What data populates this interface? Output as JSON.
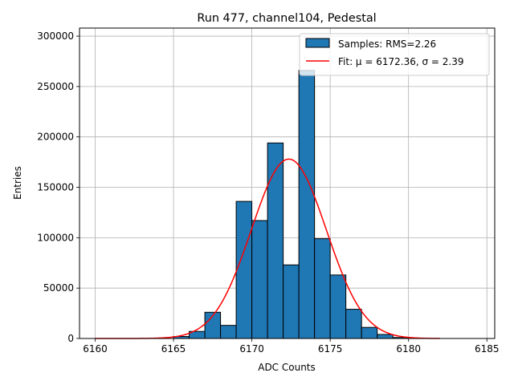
{
  "chart_data": {
    "type": "bar",
    "title": "Run 477, channel104, Pedestal",
    "xlabel": "ADC Counts",
    "ylabel": "Entries",
    "xlim": [
      6159,
      6185.5
    ],
    "ylim": [
      0,
      308000
    ],
    "xticks": [
      6160,
      6165,
      6170,
      6175,
      6180,
      6185
    ],
    "yticks": [
      0,
      50000,
      100000,
      150000,
      200000,
      250000,
      300000
    ],
    "grid": true,
    "legend_position": "top-right",
    "bin_width": 1,
    "bars": [
      {
        "x": 6165,
        "value": 2000
      },
      {
        "x": 6166,
        "value": 7000
      },
      {
        "x": 6167,
        "value": 26000
      },
      {
        "x": 6168,
        "value": 13000
      },
      {
        "x": 6169,
        "value": 136000
      },
      {
        "x": 6170,
        "value": 117000
      },
      {
        "x": 6171,
        "value": 194000
      },
      {
        "x": 6172,
        "value": 73000
      },
      {
        "x": 6173,
        "value": 266000
      },
      {
        "x": 6174,
        "value": 99000
      },
      {
        "x": 6175,
        "value": 63000
      },
      {
        "x": 6176,
        "value": 29000
      },
      {
        "x": 6177,
        "value": 11000
      },
      {
        "x": 6178,
        "value": 4000
      },
      {
        "x": 6179,
        "value": 1000
      }
    ],
    "fit": {
      "mu": 6172.36,
      "sigma": 2.39,
      "amplitude": 178000,
      "x_range": [
        6160,
        6182
      ]
    },
    "series": [
      {
        "name": "Samples: RMS=2.26",
        "color": "#1f77b4",
        "kind": "bar"
      },
      {
        "name": "Fit: μ = 6172.36, σ = 2.39",
        "color": "#ff0000",
        "kind": "line"
      }
    ],
    "colors": {
      "bar": "#1f77b4",
      "bar_edge": "#000000",
      "fit": "#ff0000",
      "grid": "#b0b0b0"
    }
  }
}
